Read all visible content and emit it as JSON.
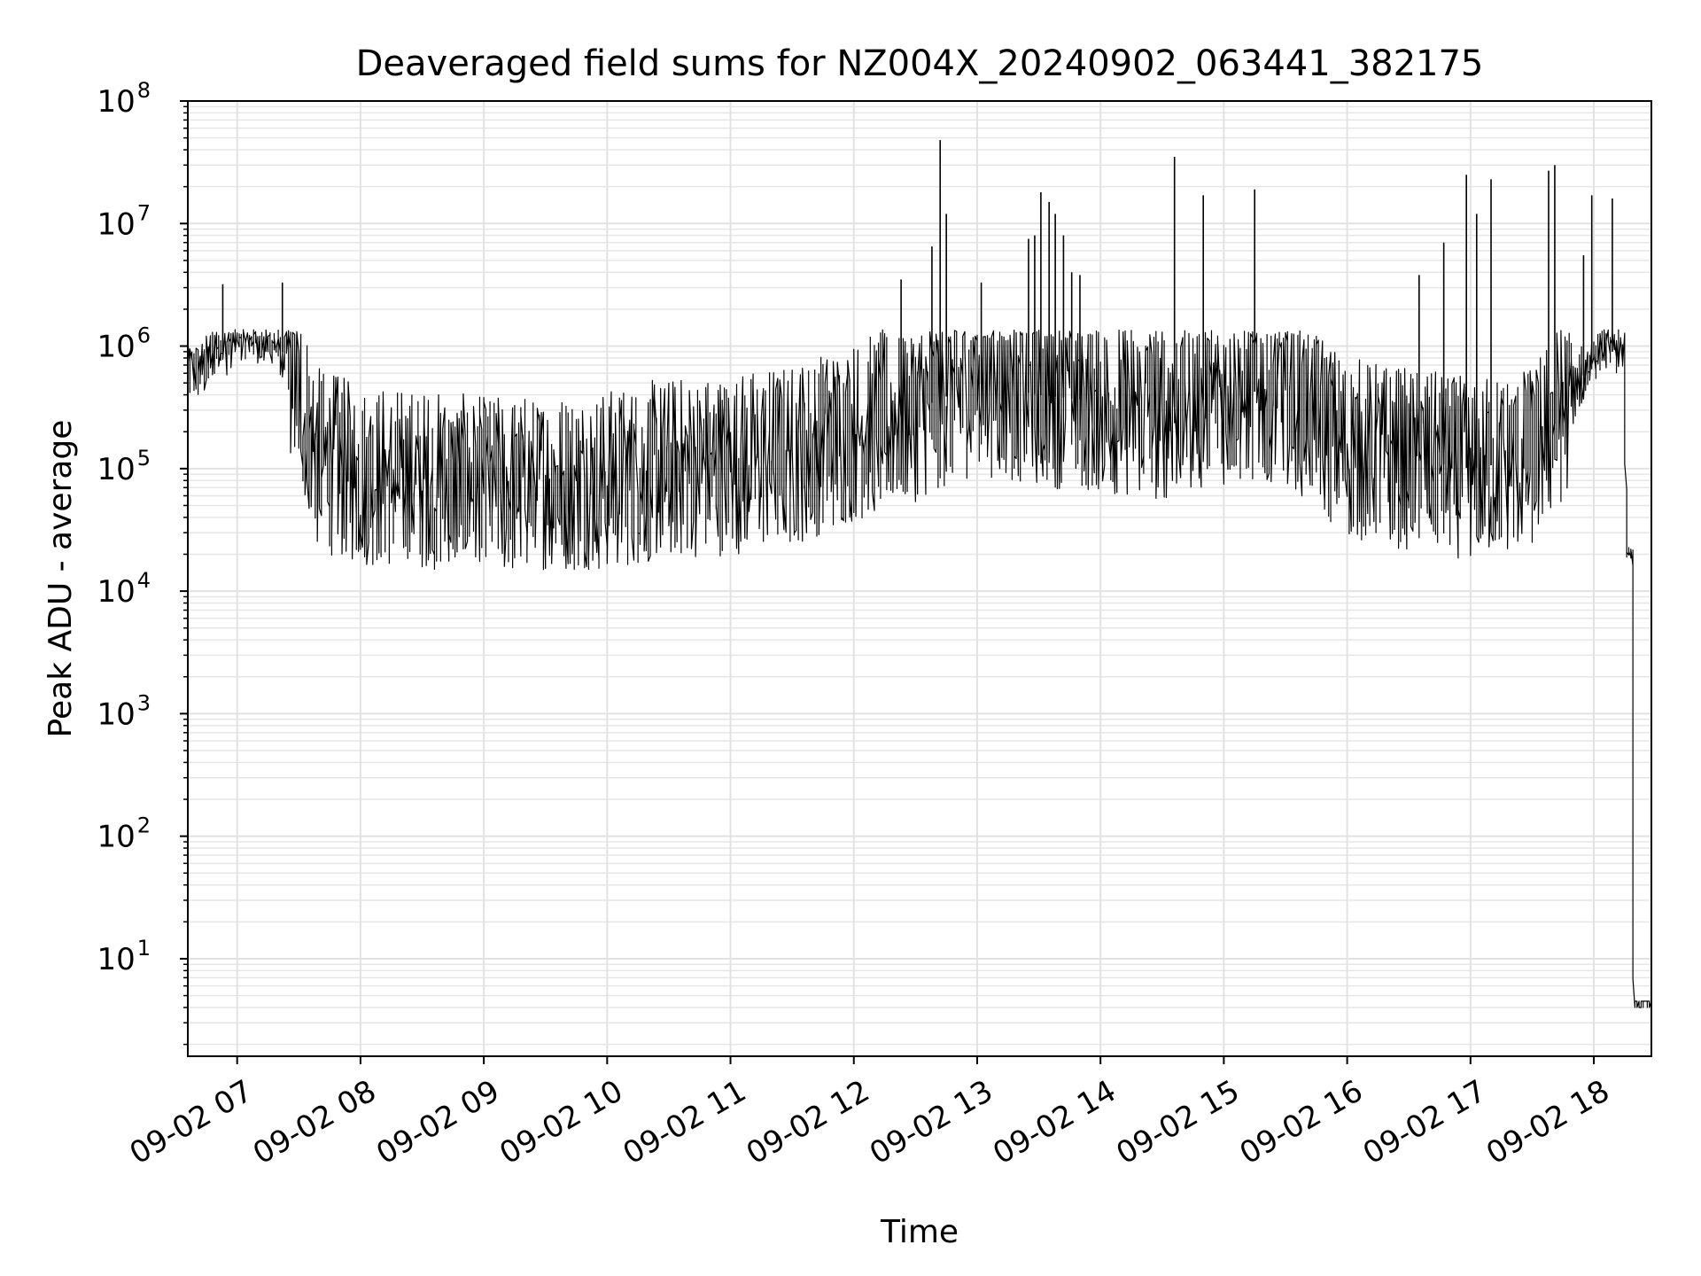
{
  "chart_data": {
    "type": "line",
    "title": "Deaveraged field sums for NZ004X_20240902_063441_382175",
    "xlabel": "Time",
    "ylabel": "Peak ADU - average",
    "yscale": "log",
    "ylim": [
      1.6,
      100000000
    ],
    "xlim": [
      "2024-09-02 06:36",
      "2024-09-02 18:28"
    ],
    "grid": true,
    "legend": "none",
    "x_ticks": [
      "09-02 07",
      "09-02 08",
      "09-02 09",
      "09-02 10",
      "09-02 11",
      "09-02 12",
      "09-02 13",
      "09-02 14",
      "09-02 15",
      "09-02 16",
      "09-02 17",
      "09-02 18"
    ],
    "y_ticks": [
      {
        "base": "10",
        "exp": "1",
        "value": 10
      },
      {
        "base": "10",
        "exp": "2",
        "value": 100
      },
      {
        "base": "10",
        "exp": "3",
        "value": 1000
      },
      {
        "base": "10",
        "exp": "4",
        "value": 10000
      },
      {
        "base": "10",
        "exp": "5",
        "value": 100000
      },
      {
        "base": "10",
        "exp": "6",
        "value": 1000000
      },
      {
        "base": "10",
        "exp": "7",
        "value": 10000000
      },
      {
        "base": "10",
        "exp": "8",
        "value": 100000000
      }
    ],
    "series": [
      {
        "color": "#000000",
        "x": [
          "2024-09-02 06:36",
          "2024-09-02 06:45",
          "2024-09-02 06:52",
          "2024-09-02 06:55",
          "2024-09-02 07:00",
          "2024-09-02 07:05",
          "2024-09-02 07:15",
          "2024-09-02 07:25",
          "2024-09-02 07:40",
          "2024-09-02 08:00",
          "2024-09-02 08:30",
          "2024-09-02 09:00",
          "2024-09-02 09:30",
          "2024-09-02 10:00",
          "2024-09-02 10:30",
          "2024-09-02 11:00",
          "2024-09-02 11:30",
          "2024-09-02 12:00",
          "2024-09-02 12:30",
          "2024-09-02 13:00",
          "2024-09-02 13:30",
          "2024-09-02 14:00",
          "2024-09-02 14:30",
          "2024-09-02 15:00",
          "2024-09-02 15:30",
          "2024-09-02 16:00",
          "2024-09-02 16:30",
          "2024-09-02 17:00",
          "2024-09-02 17:30",
          "2024-09-02 17:50",
          "2024-09-02 18:05",
          "2024-09-02 18:15",
          "2024-09-02 18:20",
          "2024-09-02 18:28"
        ],
        "y": [
          600000,
          650000,
          1200000,
          1000000,
          1300000,
          1400000,
          1200000,
          900000,
          120000,
          90000,
          80000,
          70000,
          75000,
          80000,
          100000,
          110000,
          130000,
          200000,
          300000,
          500000,
          400000,
          350000,
          300000,
          400000,
          450000,
          150000,
          120000,
          100000,
          120000,
          400000,
          1200000,
          1000000,
          4,
          4
        ],
        "spikes": [
          {
            "x": "2024-09-02 06:53",
            "y": 3200000
          },
          {
            "x": "2024-09-02 07:22",
            "y": 3300000
          },
          {
            "x": "2024-09-02 12:23",
            "y": 3500000
          },
          {
            "x": "2024-09-02 12:38",
            "y": 6500000
          },
          {
            "x": "2024-09-02 12:42",
            "y": 48000000
          },
          {
            "x": "2024-09-02 12:45",
            "y": 12000000
          },
          {
            "x": "2024-09-02 13:02",
            "y": 3300000
          },
          {
            "x": "2024-09-02 13:25",
            "y": 7500000
          },
          {
            "x": "2024-09-02 13:28",
            "y": 8000000
          },
          {
            "x": "2024-09-02 13:31",
            "y": 18000000
          },
          {
            "x": "2024-09-02 13:35",
            "y": 15000000
          },
          {
            "x": "2024-09-02 13:38",
            "y": 12000000
          },
          {
            "x": "2024-09-02 13:42",
            "y": 8000000
          },
          {
            "x": "2024-09-02 13:46",
            "y": 4000000
          },
          {
            "x": "2024-09-02 13:50",
            "y": 3800000
          },
          {
            "x": "2024-09-02 14:36",
            "y": 35000000
          },
          {
            "x": "2024-09-02 14:50",
            "y": 17000000
          },
          {
            "x": "2024-09-02 15:15",
            "y": 19000000
          },
          {
            "x": "2024-09-02 16:35",
            "y": 3800000
          },
          {
            "x": "2024-09-02 16:47",
            "y": 7000000
          },
          {
            "x": "2024-09-02 16:58",
            "y": 25000000
          },
          {
            "x": "2024-09-02 17:03",
            "y": 12000000
          },
          {
            "x": "2024-09-02 17:10",
            "y": 23000000
          },
          {
            "x": "2024-09-02 17:38",
            "y": 27000000
          },
          {
            "x": "2024-09-02 17:41",
            "y": 30000000
          },
          {
            "x": "2024-09-02 17:55",
            "y": 5500000
          },
          {
            "x": "2024-09-02 17:59",
            "y": 17000000
          },
          {
            "x": "2024-09-02 18:09",
            "y": 16000000
          }
        ]
      }
    ]
  }
}
